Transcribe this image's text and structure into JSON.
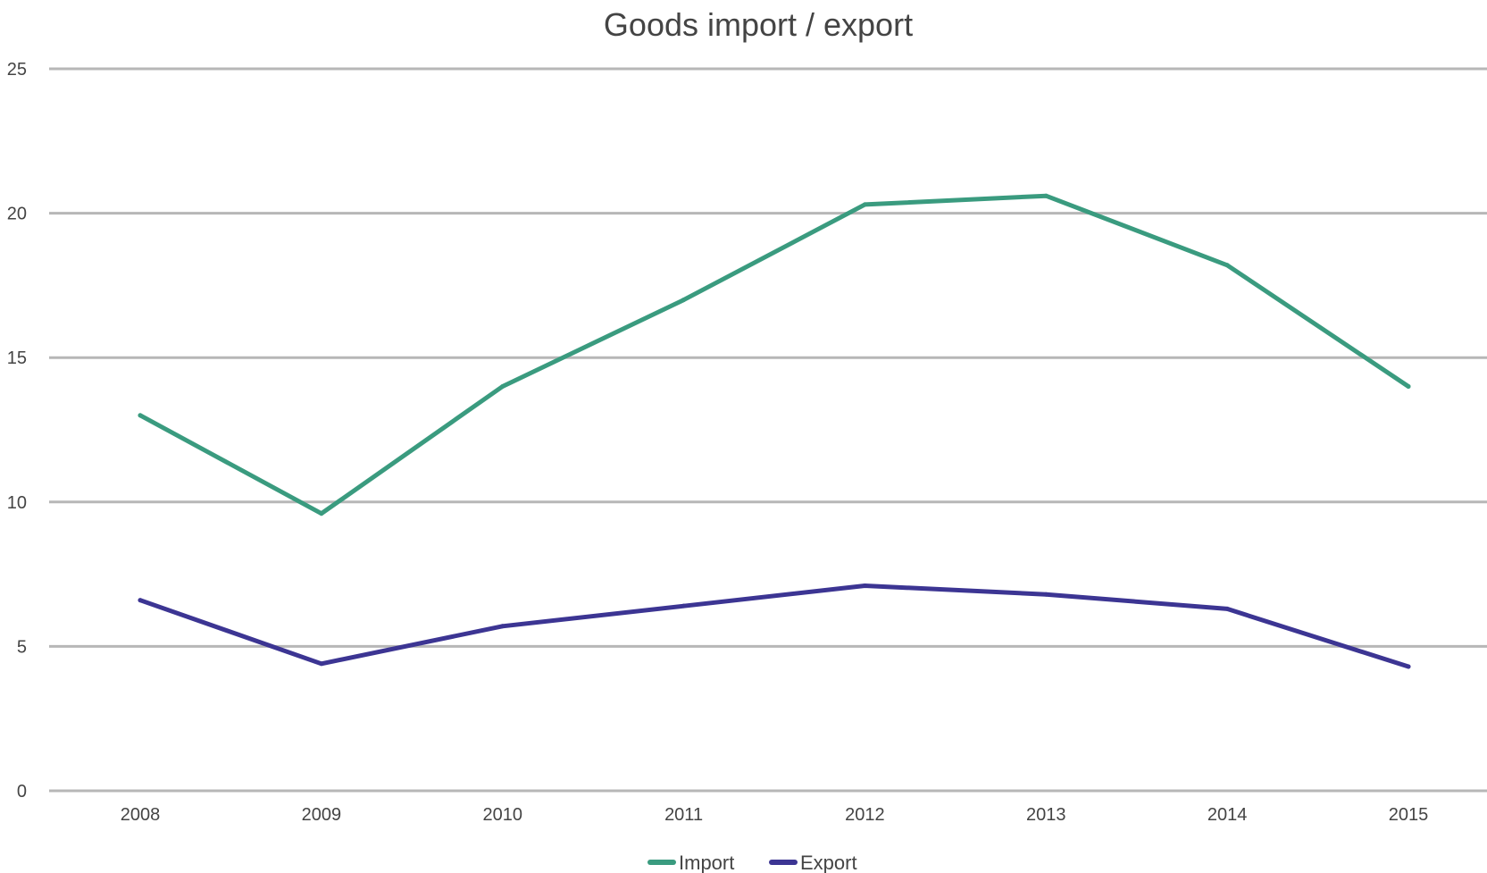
{
  "chart_data": {
    "type": "line",
    "title": "Goods import / export",
    "xlabel": "",
    "ylabel": "",
    "categories": [
      "2008",
      "2009",
      "2010",
      "2011",
      "2012",
      "2013",
      "2014",
      "2015"
    ],
    "ylim": [
      0,
      25
    ],
    "yticks": [
      0,
      5,
      10,
      15,
      20,
      25
    ],
    "y_tick_labels": [
      "0",
      "5",
      "10",
      "15",
      "20",
      "25"
    ],
    "grid": true,
    "legend_position": "bottom",
    "series": [
      {
        "name": "Import",
        "color": "#3a9b7f",
        "values": [
          13.0,
          9.6,
          14.0,
          17.0,
          20.3,
          20.6,
          18.2,
          14.0
        ]
      },
      {
        "name": "Export",
        "color": "#3c3593",
        "values": [
          6.6,
          4.4,
          5.7,
          6.4,
          7.1,
          6.8,
          6.3,
          4.3
        ]
      }
    ]
  }
}
